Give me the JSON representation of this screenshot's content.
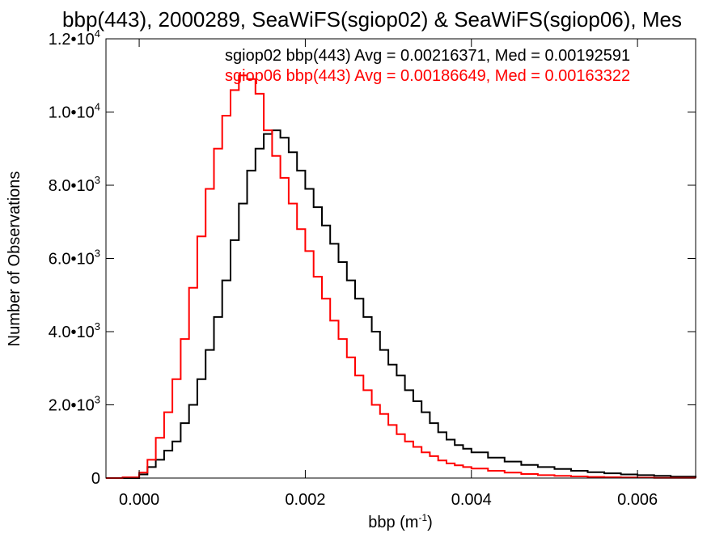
{
  "chart_data": {
    "type": "line",
    "title": "bbp(443), 2000289, SeaWiFS(sgiop02) & SeaWiFS(sgiop06), Mes",
    "xlabel": "bbp (m",
    "xlabel_sup": "-1",
    "xlabel_close": ")",
    "ylabel": "Number of Observations",
    "xlim": [
      -0.0004,
      0.0067
    ],
    "ylim": [
      0,
      12000
    ],
    "grid": false,
    "x_ticks": [
      {
        "value": 0.0,
        "label": "0.000"
      },
      {
        "value": 0.002,
        "label": "0.002"
      },
      {
        "value": 0.004,
        "label": "0.004"
      },
      {
        "value": 0.006,
        "label": "0.006"
      }
    ],
    "y_ticks": [
      {
        "value": 0,
        "mant": "0",
        "exp": ""
      },
      {
        "value": 2000,
        "mant": "2.0•10",
        "exp": "3"
      },
      {
        "value": 4000,
        "mant": "4.0•10",
        "exp": "3"
      },
      {
        "value": 6000,
        "mant": "6.0•10",
        "exp": "3"
      },
      {
        "value": 8000,
        "mant": "8.0•10",
        "exp": "3"
      },
      {
        "value": 10000,
        "mant": "1.0•10",
        "exp": "4"
      },
      {
        "value": 12000,
        "mant": "1.2•10",
        "exp": "4"
      }
    ],
    "annotations": [
      {
        "text": "sgiop02 bbp(443) Avg = 0.00216371, Med = 0.00192591",
        "color": "#000000"
      },
      {
        "text": "sgiop06 bbp(443) Avg = 0.00186649, Med = 0.00163322",
        "color": "#ff0000"
      }
    ],
    "series": [
      {
        "color": "#000000",
        "x": [
          -0.0004,
          -0.0002,
          0.0,
          0.0001,
          0.0002,
          0.0003,
          0.0004,
          0.0005,
          0.0006,
          0.0007,
          0.0008,
          0.0009,
          0.001,
          0.0011,
          0.0012,
          0.0013,
          0.0014,
          0.0015,
          0.0016,
          0.0017,
          0.0018,
          0.0019,
          0.002,
          0.0021,
          0.0022,
          0.0023,
          0.0024,
          0.0025,
          0.0026,
          0.0027,
          0.0028,
          0.0029,
          0.003,
          0.0031,
          0.0032,
          0.0033,
          0.0034,
          0.0035,
          0.0036,
          0.0037,
          0.0038,
          0.0039,
          0.004,
          0.0042,
          0.0044,
          0.0046,
          0.0048,
          0.005,
          0.0052,
          0.0054,
          0.0056,
          0.0058,
          0.006,
          0.0062,
          0.0064,
          0.0067
        ],
        "y": [
          0,
          0,
          100,
          300,
          500,
          750,
          1000,
          1500,
          2000,
          2700,
          3500,
          4400,
          5400,
          6500,
          7500,
          8400,
          9000,
          9400,
          9500,
          9300,
          8900,
          8400,
          7900,
          7400,
          6900,
          6400,
          5900,
          5400,
          4900,
          4400,
          4000,
          3500,
          3100,
          2800,
          2400,
          2100,
          1800,
          1500,
          1250,
          1050,
          900,
          800,
          700,
          560,
          450,
          360,
          300,
          250,
          200,
          160,
          130,
          100,
          80,
          60,
          40,
          25
        ]
      },
      {
        "color": "#ff0000",
        "x": [
          -0.0004,
          -0.0002,
          0.0,
          0.0001,
          0.0002,
          0.0003,
          0.0004,
          0.0005,
          0.0006,
          0.0007,
          0.0008,
          0.0009,
          0.001,
          0.0011,
          0.0012,
          0.0013,
          0.0014,
          0.0015,
          0.0016,
          0.0017,
          0.0018,
          0.0019,
          0.002,
          0.0021,
          0.0022,
          0.0023,
          0.0024,
          0.0025,
          0.0026,
          0.0027,
          0.0028,
          0.0029,
          0.003,
          0.0031,
          0.0032,
          0.0033,
          0.0034,
          0.0035,
          0.0036,
          0.0037,
          0.0038,
          0.0039,
          0.004,
          0.0042,
          0.0044,
          0.0046,
          0.0048,
          0.005,
          0.0052,
          0.0054,
          0.0056,
          0.0058,
          0.006,
          0.0062,
          0.0064,
          0.0067
        ],
        "y": [
          0,
          20,
          150,
          500,
          1100,
          1800,
          2700,
          3800,
          5200,
          6600,
          7900,
          9000,
          9900,
          10600,
          11000,
          10900,
          10500,
          9500,
          8800,
          8200,
          7500,
          6800,
          6200,
          5500,
          4900,
          4300,
          3800,
          3300,
          2800,
          2400,
          2000,
          1750,
          1450,
          1200,
          1000,
          850,
          700,
          600,
          480,
          400,
          350,
          300,
          260,
          200,
          150,
          110,
          80,
          60,
          45,
          32,
          22,
          15,
          10,
          6,
          4,
          2
        ]
      }
    ]
  }
}
